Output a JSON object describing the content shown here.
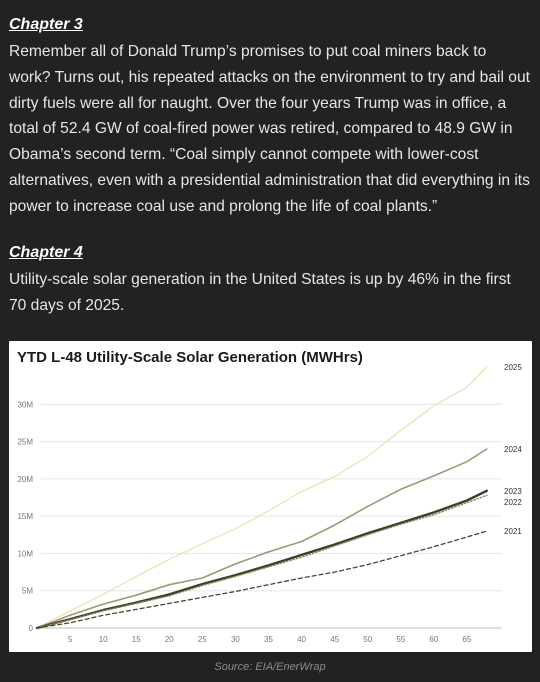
{
  "chapter3": {
    "title": "Chapter 3",
    "body": "Remember all of Donald Trump’s promises to put coal miners back to work? Turns out, his repeated attacks on the environment to try and bail out dirty fuels were all for naught. Over the four years Trump was in office, a total of 52.4 GW of coal-fired power was retired, compared to 48.9 GW in Obama’s second term. “Coal simply cannot compete with lower-cost alternatives, even with a presidential administration that did everything in its power to increase coal use and prolong the life of coal plants.”"
  },
  "chapter4": {
    "title": "Chapter 4",
    "body": "Utility-scale solar generation in the United States is up by 46% in the first 70 days of 2025."
  },
  "source": "Source: EIA/EnerWrap",
  "chart_data": {
    "type": "line",
    "title": "YTD L-48 Utility-Scale Solar Generation (MWHrs)",
    "xlabel": "",
    "ylabel": "",
    "xlim": [
      0,
      70
    ],
    "ylim": [
      0,
      35000000
    ],
    "x_ticks": [
      5,
      10,
      15,
      20,
      25,
      30,
      35,
      40,
      45,
      50,
      55,
      60,
      65
    ],
    "y_ticks": [
      {
        "value": 0,
        "label": "0"
      },
      {
        "value": 5000000,
        "label": "5M"
      },
      {
        "value": 10000000,
        "label": "10M"
      },
      {
        "value": 15000000,
        "label": "15M"
      },
      {
        "value": 20000000,
        "label": "20M"
      },
      {
        "value": 25000000,
        "label": "25M"
      },
      {
        "value": 30000000,
        "label": "30M"
      }
    ],
    "grid": true,
    "legend": "end-of-line labels",
    "series": [
      {
        "name": "2025",
        "color": "#efe3b3",
        "style": "solid",
        "x": [
          0,
          5,
          10,
          15,
          20,
          25,
          30,
          35,
          40,
          45,
          50,
          55,
          60,
          65,
          68
        ],
        "values": [
          0,
          2300000,
          4500000,
          6900000,
          9200000,
          11300000,
          13300000,
          15700000,
          18300000,
          20300000,
          23000000,
          26500000,
          29800000,
          32300000,
          35000000
        ]
      },
      {
        "name": "2024",
        "color": "#9c9a74",
        "style": "solid",
        "x": [
          0,
          5,
          10,
          15,
          20,
          25,
          30,
          35,
          40,
          45,
          50,
          55,
          60,
          65,
          68
        ],
        "values": [
          0,
          1700000,
          3200000,
          4400000,
          5800000,
          6700000,
          8600000,
          10200000,
          11600000,
          13800000,
          16300000,
          18600000,
          20400000,
          22300000,
          24000000
        ]
      },
      {
        "name": "2023",
        "color": "#403c27",
        "style": "solid",
        "x": [
          0,
          5,
          10,
          15,
          20,
          25,
          30,
          35,
          40,
          45,
          50,
          55,
          60,
          65,
          68
        ],
        "values": [
          0,
          1200000,
          2400000,
          3400000,
          4500000,
          5900000,
          7100000,
          8400000,
          9800000,
          11200000,
          12700000,
          14100000,
          15500000,
          17100000,
          18400000
        ]
      },
      {
        "name": "2022",
        "color": "#8a8a64",
        "style": "dotted",
        "x": [
          0,
          5,
          10,
          15,
          20,
          25,
          30,
          35,
          40,
          45,
          50,
          55,
          60,
          65,
          68
        ],
        "values": [
          0,
          1100000,
          2300000,
          3300000,
          4300000,
          5700000,
          6900000,
          8200000,
          9500000,
          11000000,
          12500000,
          13900000,
          15200000,
          16800000,
          17800000
        ]
      },
      {
        "name": "2021",
        "color": "#4a4630",
        "style": "dashed",
        "x": [
          0,
          5,
          10,
          15,
          20,
          25,
          30,
          35,
          40,
          45,
          50,
          55,
          60,
          65,
          68
        ],
        "values": [
          0,
          700000,
          1700000,
          2500000,
          3300000,
          4100000,
          4900000,
          5800000,
          6700000,
          7500000,
          8500000,
          9700000,
          10900000,
          12200000,
          13000000
        ]
      }
    ]
  }
}
